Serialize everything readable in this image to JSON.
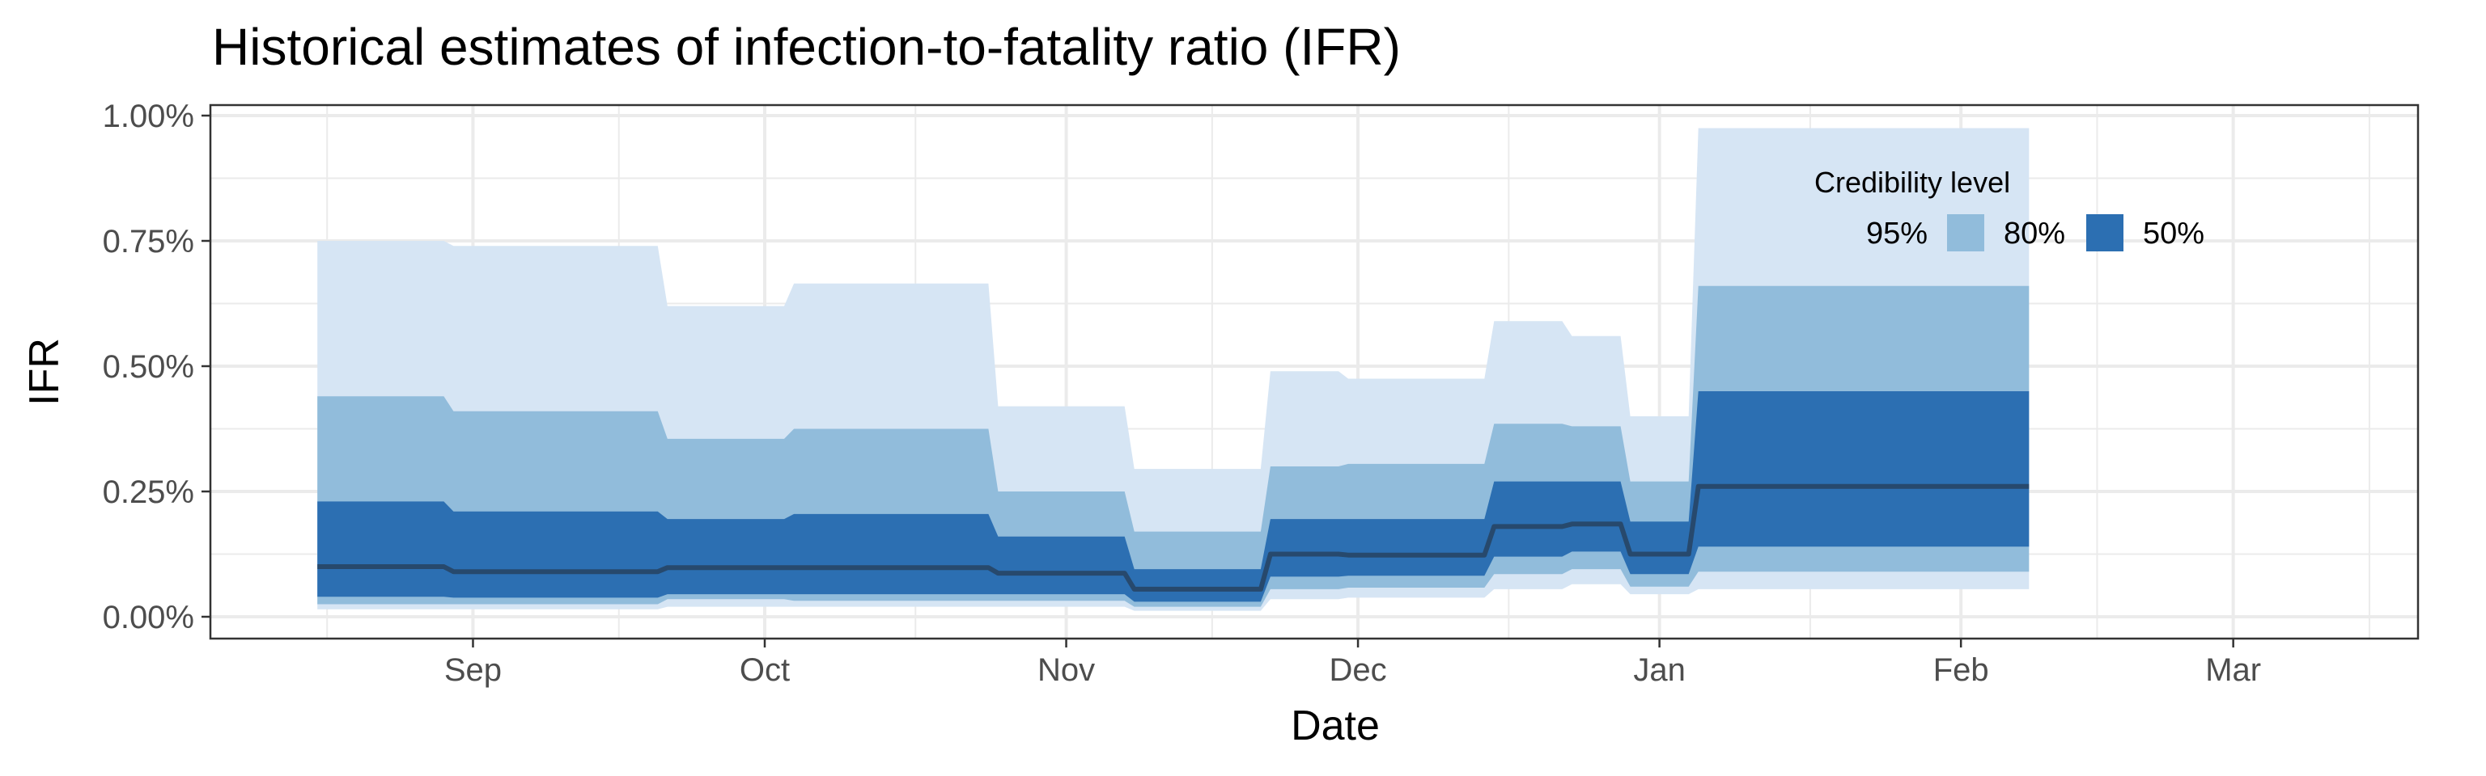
{
  "chart_data": {
    "type": "area",
    "title": "Historical estimates of infection-to-fatality ratio (IFR)",
    "xlabel": "Date",
    "ylabel": "IFR",
    "ylim": [
      0,
      1.0
    ],
    "y_ticks": [
      0.0,
      0.25,
      0.5,
      0.75,
      1.0
    ],
    "y_tick_labels": [
      "0.00%",
      "0.25%",
      "0.50%",
      "0.75%",
      "1.00%"
    ],
    "x_tick_labels": [
      "Sep",
      "Oct",
      "Nov",
      "Dec",
      "Jan",
      "Feb",
      "Mar"
    ],
    "x_tick_dates": [
      "2020-09-01",
      "2020-10-01",
      "2020-11-01",
      "2020-12-01",
      "2021-01-01",
      "2021-02-01",
      "2021-03-01"
    ],
    "xlim": [
      "2020-08-05",
      "2021-03-20"
    ],
    "grid": true,
    "legend": {
      "title": "Credibility level",
      "placement": "top-right (inside)",
      "entries": [
        "95%",
        "80%",
        "50%"
      ]
    },
    "colors": {
      "band_95": "#d6e5f4",
      "band_80": "#91bcdb",
      "band_50": "#2c6fb2",
      "median": "#27496d",
      "grid": "#ebebeb",
      "axis_text": "#4d4d4d"
    },
    "series": [
      {
        "x": [
          "2020-08-16",
          "2020-08-29",
          "2020-08-30",
          "2020-09-20",
          "2020-09-21",
          "2020-10-03",
          "2020-10-04",
          "2020-10-24",
          "2020-10-25",
          "2020-11-07",
          "2020-11-08",
          "2020-11-21",
          "2020-11-22",
          "2020-11-29",
          "2020-11-30",
          "2020-12-14",
          "2020-12-15",
          "2020-12-22",
          "2020-12-23",
          "2020-12-28",
          "2020-12-29",
          "2021-01-04",
          "2021-01-05",
          "2021-02-08"
        ],
        "median": [
          0.1,
          0.1,
          0.09,
          0.09,
          0.098,
          0.098,
          0.098,
          0.098,
          0.087,
          0.087,
          0.055,
          0.055,
          0.125,
          0.125,
          0.123,
          0.123,
          0.18,
          0.18,
          0.185,
          0.185,
          0.125,
          0.125,
          0.26,
          0.26
        ],
        "lo50": [
          0.04,
          0.04,
          0.038,
          0.038,
          0.045,
          0.045,
          0.045,
          0.045,
          0.045,
          0.045,
          0.03,
          0.03,
          0.08,
          0.08,
          0.082,
          0.082,
          0.12,
          0.12,
          0.13,
          0.13,
          0.085,
          0.085,
          0.14,
          0.14
        ],
        "hi50": [
          0.23,
          0.23,
          0.21,
          0.21,
          0.195,
          0.195,
          0.205,
          0.205,
          0.16,
          0.16,
          0.095,
          0.095,
          0.195,
          0.195,
          0.195,
          0.195,
          0.27,
          0.27,
          0.27,
          0.27,
          0.19,
          0.19,
          0.45,
          0.45
        ],
        "lo80": [
          0.025,
          0.025,
          0.025,
          0.025,
          0.035,
          0.035,
          0.032,
          0.032,
          0.032,
          0.032,
          0.02,
          0.02,
          0.055,
          0.055,
          0.058,
          0.058,
          0.085,
          0.085,
          0.095,
          0.095,
          0.06,
          0.06,
          0.09,
          0.09
        ],
        "hi80": [
          0.44,
          0.44,
          0.41,
          0.41,
          0.355,
          0.355,
          0.375,
          0.375,
          0.25,
          0.25,
          0.17,
          0.17,
          0.3,
          0.3,
          0.305,
          0.305,
          0.385,
          0.385,
          0.38,
          0.38,
          0.27,
          0.27,
          0.66,
          0.66
        ],
        "lo95": [
          0.015,
          0.015,
          0.015,
          0.015,
          0.02,
          0.02,
          0.02,
          0.02,
          0.02,
          0.02,
          0.012,
          0.012,
          0.035,
          0.035,
          0.038,
          0.038,
          0.055,
          0.055,
          0.065,
          0.065,
          0.045,
          0.045,
          0.055,
          0.055
        ],
        "hi95": [
          0.75,
          0.75,
          0.74,
          0.74,
          0.62,
          0.62,
          0.665,
          0.665,
          0.42,
          0.42,
          0.295,
          0.295,
          0.49,
          0.49,
          0.475,
          0.475,
          0.59,
          0.59,
          0.56,
          0.56,
          0.4,
          0.4,
          0.975,
          0.975
        ]
      }
    ]
  }
}
